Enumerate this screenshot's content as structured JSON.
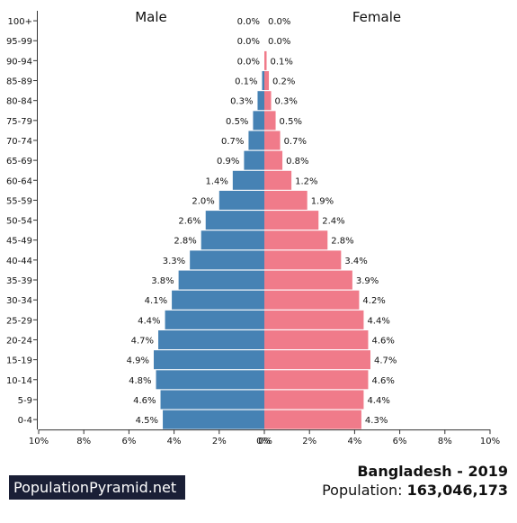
{
  "footer": {
    "brand": "PopulationPyramid.net",
    "country": "Bangladesh",
    "separator": " - ",
    "year": "2019",
    "population_label": "Population:",
    "population_value": "163,046,173"
  },
  "chart_data": {
    "type": "bar",
    "subtype": "population-pyramid",
    "title": "",
    "side_labels": {
      "left": "Male",
      "right": "Female"
    },
    "colors": {
      "male": "#4682b4",
      "female": "#f07b8a"
    },
    "categories": [
      "100+",
      "95-99",
      "90-94",
      "85-89",
      "80-84",
      "75-79",
      "70-74",
      "65-69",
      "60-64",
      "55-59",
      "50-54",
      "45-49",
      "40-44",
      "35-39",
      "30-34",
      "25-29",
      "20-24",
      "15-19",
      "10-14",
      "5-9",
      "0-4"
    ],
    "series": [
      {
        "name": "Male",
        "values": [
          0.0,
          0.0,
          0.0,
          0.1,
          0.3,
          0.5,
          0.7,
          0.9,
          1.4,
          2.0,
          2.6,
          2.8,
          3.3,
          3.8,
          4.1,
          4.4,
          4.7,
          4.9,
          4.8,
          4.6,
          4.5
        ]
      },
      {
        "name": "Female",
        "values": [
          0.0,
          0.0,
          0.1,
          0.2,
          0.3,
          0.5,
          0.7,
          0.8,
          1.2,
          1.9,
          2.4,
          2.8,
          3.4,
          3.9,
          4.2,
          4.4,
          4.6,
          4.7,
          4.6,
          4.4,
          4.3
        ]
      }
    ],
    "xlim": [
      0,
      10
    ],
    "xticks": [
      "10%",
      "8%",
      "6%",
      "4%",
      "2%",
      "0%",
      "0%",
      "2%",
      "4%",
      "6%",
      "8%",
      "10%"
    ],
    "value_suffix": "%",
    "grid": false
  }
}
